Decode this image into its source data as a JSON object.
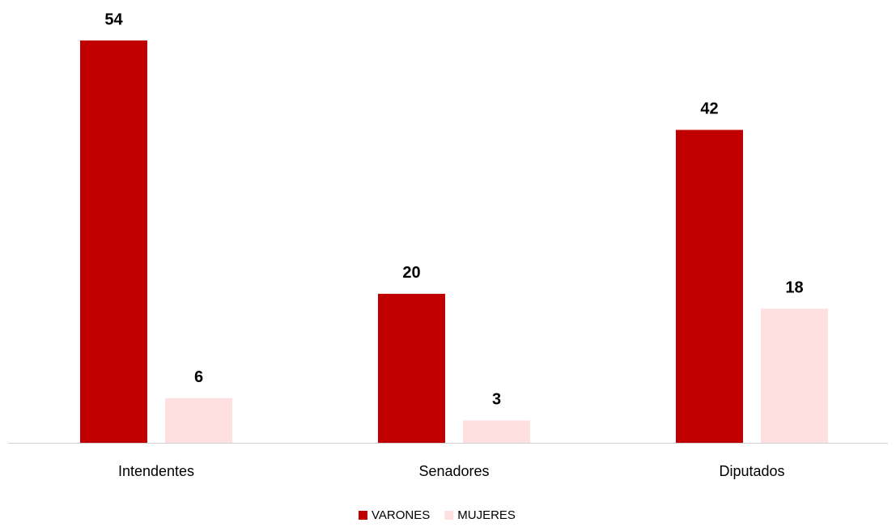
{
  "chart_data": {
    "type": "bar",
    "categories": [
      "Intendentes",
      "Senadores",
      "Diputados"
    ],
    "series": [
      {
        "name": "VARONES",
        "color": "#c00000",
        "values": [
          54,
          20,
          42
        ]
      },
      {
        "name": "MUJERES",
        "color": "#ffe0e0",
        "values": [
          6,
          3,
          18
        ]
      }
    ],
    "legend": "bottom"
  }
}
